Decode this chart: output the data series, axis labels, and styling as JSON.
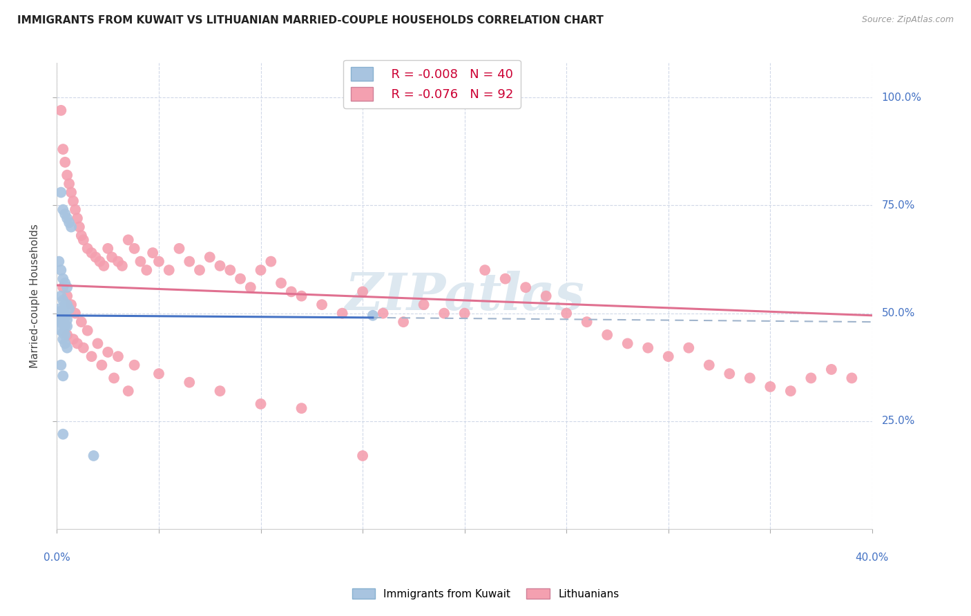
{
  "title": "IMMIGRANTS FROM KUWAIT VS LITHUANIAN MARRIED-COUPLE HOUSEHOLDS CORRELATION CHART",
  "source": "Source: ZipAtlas.com",
  "ylabel": "Married-couple Households",
  "ytick_labels": [
    "25.0%",
    "50.0%",
    "75.0%",
    "100.0%"
  ],
  "ytick_values": [
    0.25,
    0.5,
    0.75,
    1.0
  ],
  "xlim": [
    0.0,
    0.4
  ],
  "ylim": [
    0.0,
    1.08
  ],
  "legend_r1": "R = -0.008",
  "legend_n1": "N = 40",
  "legend_r2": "R = -0.076",
  "legend_n2": "N = 92",
  "color_blue": "#a8c4e0",
  "color_pink": "#f4a0b0",
  "trendline_blue": "#4472c4",
  "trendline_pink": "#e07090",
  "trendline_dashed_color": "#a0b4cc",
  "watermark_color": "#dde8f0",
  "blue_scatter_x": [
    0.002,
    0.003,
    0.004,
    0.005,
    0.006,
    0.007,
    0.001,
    0.002,
    0.003,
    0.004,
    0.005,
    0.002,
    0.003,
    0.004,
    0.005,
    0.006,
    0.001,
    0.002,
    0.003,
    0.004,
    0.002,
    0.003,
    0.004,
    0.005,
    0.001,
    0.002,
    0.003,
    0.004,
    0.005,
    0.002,
    0.003,
    0.004,
    0.003,
    0.004,
    0.005,
    0.002,
    0.003,
    0.155,
    0.003,
    0.018
  ],
  "blue_scatter_y": [
    0.78,
    0.74,
    0.73,
    0.72,
    0.71,
    0.7,
    0.62,
    0.6,
    0.58,
    0.57,
    0.56,
    0.54,
    0.53,
    0.52,
    0.52,
    0.51,
    0.51,
    0.505,
    0.5,
    0.5,
    0.495,
    0.49,
    0.49,
    0.485,
    0.48,
    0.48,
    0.475,
    0.47,
    0.47,
    0.46,
    0.455,
    0.45,
    0.44,
    0.43,
    0.42,
    0.38,
    0.355,
    0.495,
    0.22,
    0.17
  ],
  "pink_scatter_x": [
    0.002,
    0.003,
    0.004,
    0.005,
    0.006,
    0.007,
    0.008,
    0.009,
    0.01,
    0.011,
    0.012,
    0.013,
    0.015,
    0.017,
    0.019,
    0.021,
    0.023,
    0.025,
    0.027,
    0.03,
    0.032,
    0.035,
    0.038,
    0.041,
    0.044,
    0.047,
    0.05,
    0.055,
    0.06,
    0.065,
    0.07,
    0.075,
    0.08,
    0.085,
    0.09,
    0.095,
    0.1,
    0.105,
    0.11,
    0.115,
    0.12,
    0.13,
    0.14,
    0.15,
    0.16,
    0.17,
    0.18,
    0.19,
    0.2,
    0.21,
    0.22,
    0.23,
    0.24,
    0.25,
    0.26,
    0.27,
    0.28,
    0.29,
    0.3,
    0.31,
    0.32,
    0.33,
    0.34,
    0.35,
    0.36,
    0.37,
    0.38,
    0.39,
    0.003,
    0.005,
    0.007,
    0.009,
    0.012,
    0.015,
    0.02,
    0.025,
    0.03,
    0.038,
    0.05,
    0.065,
    0.08,
    0.1,
    0.12,
    0.15,
    0.005,
    0.008,
    0.01,
    0.013,
    0.017,
    0.022,
    0.028,
    0.035
  ],
  "pink_scatter_y": [
    0.97,
    0.88,
    0.85,
    0.82,
    0.8,
    0.78,
    0.76,
    0.74,
    0.72,
    0.7,
    0.68,
    0.67,
    0.65,
    0.64,
    0.63,
    0.62,
    0.61,
    0.65,
    0.63,
    0.62,
    0.61,
    0.67,
    0.65,
    0.62,
    0.6,
    0.64,
    0.62,
    0.6,
    0.65,
    0.62,
    0.6,
    0.63,
    0.61,
    0.6,
    0.58,
    0.56,
    0.6,
    0.62,
    0.57,
    0.55,
    0.54,
    0.52,
    0.5,
    0.55,
    0.5,
    0.48,
    0.52,
    0.5,
    0.5,
    0.6,
    0.58,
    0.56,
    0.54,
    0.5,
    0.48,
    0.45,
    0.43,
    0.42,
    0.4,
    0.42,
    0.38,
    0.36,
    0.35,
    0.33,
    0.32,
    0.35,
    0.37,
    0.35,
    0.56,
    0.54,
    0.52,
    0.5,
    0.48,
    0.46,
    0.43,
    0.41,
    0.4,
    0.38,
    0.36,
    0.34,
    0.32,
    0.29,
    0.28,
    0.17,
    0.45,
    0.44,
    0.43,
    0.42,
    0.4,
    0.38,
    0.35,
    0.32
  ]
}
